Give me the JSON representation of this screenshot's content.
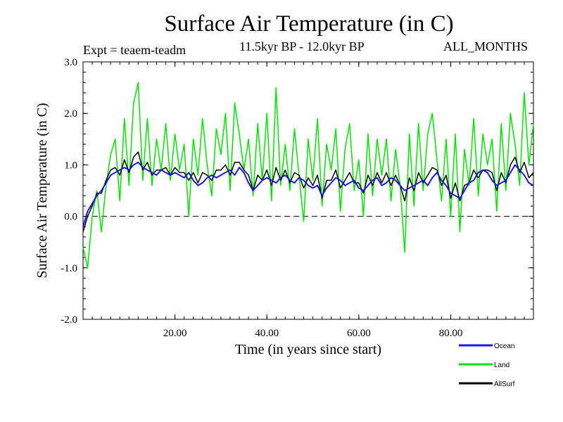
{
  "header": {
    "title": "Surface Air Temperature (in C)",
    "expt": "Expt = teaem-teadm",
    "period": "11.5kyr BP - 12.0kyr BP",
    "months": "ALL_MONTHS"
  },
  "chart_data": {
    "type": "line",
    "title": "Surface Air Temperature (in C)",
    "xlabel": "Time (in years since start)",
    "ylabel": "Surface Air Temperature (in C)",
    "xlim": [
      0,
      98
    ],
    "ylim": [
      -2.0,
      3.0
    ],
    "xticks": [
      20,
      40,
      60,
      80
    ],
    "xtick_labels": [
      "20.00",
      "40.00",
      "60.00",
      "80.00"
    ],
    "yticks": [
      -2.0,
      -1.0,
      0.0,
      1.0,
      2.0,
      3.0
    ],
    "ytick_labels": [
      "-2.0",
      "-1.0",
      "0.0",
      "1.0",
      "2.0",
      "3.0"
    ],
    "reference_line": 0.0,
    "grid": false,
    "legend_position": "bottom-right",
    "series": [
      {
        "name": "Ocean",
        "color": "#1a1adc",
        "x": [
          0,
          1,
          2,
          3,
          4,
          5,
          6,
          7,
          8,
          9,
          10,
          11,
          12,
          13,
          14,
          15,
          16,
          17,
          18,
          19,
          20,
          21,
          22,
          23,
          24,
          25,
          26,
          27,
          28,
          29,
          30,
          31,
          32,
          33,
          34,
          35,
          36,
          37,
          38,
          39,
          40,
          41,
          42,
          43,
          44,
          45,
          46,
          47,
          48,
          49,
          50,
          51,
          52,
          53,
          54,
          55,
          56,
          57,
          58,
          59,
          60,
          61,
          62,
          63,
          64,
          65,
          66,
          67,
          68,
          69,
          70,
          71,
          72,
          73,
          74,
          75,
          76,
          77,
          78,
          79,
          80,
          81,
          82,
          83,
          84,
          85,
          86,
          87,
          88,
          89,
          90,
          91,
          92,
          93,
          94,
          95,
          96,
          97,
          98
        ],
        "values": [
          -0.2,
          0.1,
          0.25,
          0.4,
          0.5,
          0.65,
          0.8,
          0.85,
          0.9,
          0.95,
          0.9,
          1.0,
          1.05,
          0.95,
          0.9,
          0.85,
          0.8,
          0.9,
          0.85,
          0.8,
          0.85,
          0.8,
          0.75,
          0.85,
          0.7,
          0.6,
          0.65,
          0.75,
          0.8,
          0.75,
          0.8,
          0.85,
          0.9,
          0.8,
          0.95,
          0.85,
          0.65,
          0.5,
          0.6,
          0.7,
          0.75,
          0.7,
          0.65,
          0.75,
          0.8,
          0.7,
          0.65,
          0.75,
          0.7,
          0.6,
          0.55,
          0.6,
          0.4,
          0.55,
          0.65,
          0.75,
          0.7,
          0.6,
          0.65,
          0.7,
          0.55,
          0.5,
          0.6,
          0.7,
          0.75,
          0.6,
          0.65,
          0.75,
          0.7,
          0.6,
          0.5,
          0.55,
          0.6,
          0.65,
          0.7,
          0.6,
          0.75,
          0.85,
          0.7,
          0.6,
          0.45,
          0.4,
          0.35,
          0.5,
          0.65,
          0.7,
          0.85,
          0.9,
          0.85,
          0.7,
          0.6,
          0.65,
          0.7,
          0.85,
          1.0,
          0.9,
          0.8,
          0.65,
          0.6
        ]
      },
      {
        "name": "Land",
        "color": "#00e600",
        "x": [
          0,
          1,
          2,
          3,
          4,
          5,
          6,
          7,
          8,
          9,
          10,
          11,
          12,
          13,
          14,
          15,
          16,
          17,
          18,
          19,
          20,
          21,
          22,
          23,
          24,
          25,
          26,
          27,
          28,
          29,
          30,
          31,
          32,
          33,
          34,
          35,
          36,
          37,
          38,
          39,
          40,
          41,
          42,
          43,
          44,
          45,
          46,
          47,
          48,
          49,
          50,
          51,
          52,
          53,
          54,
          55,
          56,
          57,
          58,
          59,
          60,
          61,
          62,
          63,
          64,
          65,
          66,
          67,
          68,
          69,
          70,
          71,
          72,
          73,
          74,
          75,
          76,
          77,
          78,
          79,
          80,
          81,
          82,
          83,
          84,
          85,
          86,
          87,
          88,
          89,
          90,
          91,
          92,
          93,
          94,
          95,
          96,
          97,
          98
        ],
        "values": [
          -0.6,
          -1.0,
          0.0,
          0.5,
          -0.3,
          0.6,
          1.2,
          1.5,
          0.3,
          1.9,
          0.6,
          2.2,
          2.6,
          0.7,
          1.9,
          0.6,
          1.5,
          0.9,
          1.8,
          0.7,
          1.6,
          0.9,
          1.4,
          0.0,
          1.5,
          0.8,
          1.9,
          1.0,
          0.4,
          1.7,
          1.2,
          2.0,
          0.5,
          2.2,
          1.6,
          0.9,
          1.5,
          0.4,
          1.8,
          0.7,
          2.0,
          0.3,
          2.5,
          0.6,
          1.4,
          0.5,
          1.7,
          0.8,
          -0.1,
          1.5,
          0.7,
          1.9,
          0.2,
          1.4,
          0.9,
          1.7,
          0.1,
          1.3,
          1.8,
          0.5,
          1.1,
          0.0,
          1.6,
          0.4,
          1.5,
          0.8,
          1.5,
          0.3,
          1.3,
          0.6,
          -0.7,
          1.6,
          0.2,
          1.8,
          0.5,
          1.6,
          2.0,
          1.1,
          0.3,
          1.5,
          0.0,
          1.6,
          -0.3,
          1.3,
          0.6,
          1.9,
          0.4,
          1.6,
          1.0,
          1.5,
          0.1,
          1.8,
          0.5,
          2.0,
          1.4,
          0.6,
          2.4,
          1.0,
          1.8
        ]
      },
      {
        "name": "AllSurf",
        "color": "#000000",
        "x": [
          0,
          1,
          2,
          3,
          4,
          5,
          6,
          7,
          8,
          9,
          10,
          11,
          12,
          13,
          14,
          15,
          16,
          17,
          18,
          19,
          20,
          21,
          22,
          23,
          24,
          25,
          26,
          27,
          28,
          29,
          30,
          31,
          32,
          33,
          34,
          35,
          36,
          37,
          38,
          39,
          40,
          41,
          42,
          43,
          44,
          45,
          46,
          47,
          48,
          49,
          50,
          51,
          52,
          53,
          54,
          55,
          56,
          57,
          58,
          59,
          60,
          61,
          62,
          63,
          64,
          65,
          66,
          67,
          68,
          69,
          70,
          71,
          72,
          73,
          74,
          75,
          76,
          77,
          78,
          79,
          80,
          81,
          82,
          83,
          84,
          85,
          86,
          87,
          88,
          89,
          90,
          91,
          92,
          93,
          94,
          95,
          96,
          97,
          98
        ],
        "values": [
          -0.3,
          0.0,
          0.2,
          0.45,
          0.45,
          0.7,
          0.9,
          0.95,
          0.8,
          1.1,
          0.85,
          1.15,
          1.25,
          0.9,
          1.05,
          0.8,
          0.9,
          0.9,
          0.95,
          0.8,
          0.95,
          0.85,
          0.85,
          0.7,
          0.85,
          0.65,
          0.85,
          0.8,
          0.7,
          0.9,
          0.9,
          1.0,
          0.8,
          1.05,
          1.05,
          0.9,
          0.8,
          0.5,
          0.8,
          0.7,
          0.9,
          0.6,
          0.95,
          0.7,
          0.9,
          0.65,
          0.85,
          0.8,
          0.55,
          0.75,
          0.6,
          0.8,
          0.35,
          0.7,
          0.7,
          0.9,
          0.55,
          0.7,
          0.85,
          0.65,
          0.65,
          0.45,
          0.8,
          0.6,
          0.85,
          0.65,
          0.85,
          0.6,
          0.8,
          0.6,
          0.3,
          0.75,
          0.5,
          0.85,
          0.65,
          0.8,
          0.95,
          0.9,
          0.6,
          0.8,
          0.35,
          0.65,
          0.3,
          0.6,
          0.65,
          0.9,
          0.75,
          0.9,
          0.9,
          0.85,
          0.5,
          0.85,
          0.65,
          1.0,
          1.15,
          0.85,
          1.05,
          0.75,
          0.85
        ]
      }
    ]
  }
}
